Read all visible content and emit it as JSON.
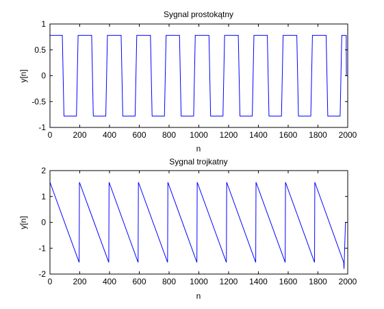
{
  "chart_data": [
    {
      "type": "line",
      "title": "Sygnal prostokątny",
      "xlabel": "n",
      "ylabel": "y[n]",
      "xlim": [
        0,
        2000
      ],
      "ylim": [
        -1,
        1
      ],
      "xticks": [
        0,
        200,
        400,
        600,
        800,
        1000,
        1200,
        1400,
        1600,
        1800,
        2000
      ],
      "yticks": [
        -1,
        -0.5,
        0,
        0.5,
        1
      ],
      "grid": false,
      "line_color": "#0000ff",
      "series": [
        {
          "x": [
            0,
            83,
            94,
            178,
            189,
            280,
            291,
            375,
            386,
            478,
            489,
            572,
            583,
            675,
            686,
            769,
            780,
            870,
            881,
            965,
            976,
            1068,
            1079,
            1162,
            1173,
            1265,
            1276,
            1359,
            1370,
            1460,
            1471,
            1555,
            1566,
            1658,
            1669,
            1752,
            1763,
            1855,
            1866,
            1949,
            1960,
            1990,
            1991,
            2000
          ],
          "y": [
            0.78,
            0.78,
            -0.78,
            -0.78,
            0.78,
            0.78,
            -0.78,
            -0.78,
            0.78,
            0.78,
            -0.78,
            -0.78,
            0.78,
            0.78,
            -0.78,
            -0.78,
            0.78,
            0.78,
            -0.78,
            -0.78,
            0.78,
            0.78,
            -0.78,
            -0.78,
            0.78,
            0.78,
            -0.78,
            -0.78,
            0.78,
            0.78,
            -0.78,
            -0.78,
            0.78,
            0.78,
            -0.78,
            -0.78,
            0.78,
            0.78,
            -0.78,
            -0.78,
            0.78,
            0.78,
            0,
            0
          ]
        }
      ]
    },
    {
      "type": "line",
      "title": "Sygnal trojkatny",
      "xlabel": "n",
      "ylabel": "y[n]",
      "xlim": [
        0,
        2000
      ],
      "ylim": [
        -2,
        2
      ],
      "xticks": [
        0,
        200,
        400,
        600,
        800,
        1000,
        1200,
        1400,
        1600,
        1800,
        2000
      ],
      "yticks": [
        -2,
        -1,
        0,
        1,
        2
      ],
      "grid": false,
      "line_color": "#0000ff",
      "series": [
        {
          "x": [
            0,
            196,
            198,
            395,
            397,
            592,
            594,
            790,
            792,
            987,
            989,
            1185,
            1187,
            1382,
            1384,
            1580,
            1582,
            1777,
            1779,
            1973,
            1975,
            1985,
            2000
          ],
          "y": [
            1.55,
            -1.55,
            1.55,
            -1.55,
            1.55,
            -1.55,
            1.55,
            -1.55,
            1.55,
            -1.55,
            1.55,
            -1.55,
            1.55,
            -1.55,
            1.55,
            -1.55,
            1.55,
            -1.55,
            1.55,
            -1.55,
            -1.8,
            0,
            0
          ]
        }
      ]
    }
  ]
}
